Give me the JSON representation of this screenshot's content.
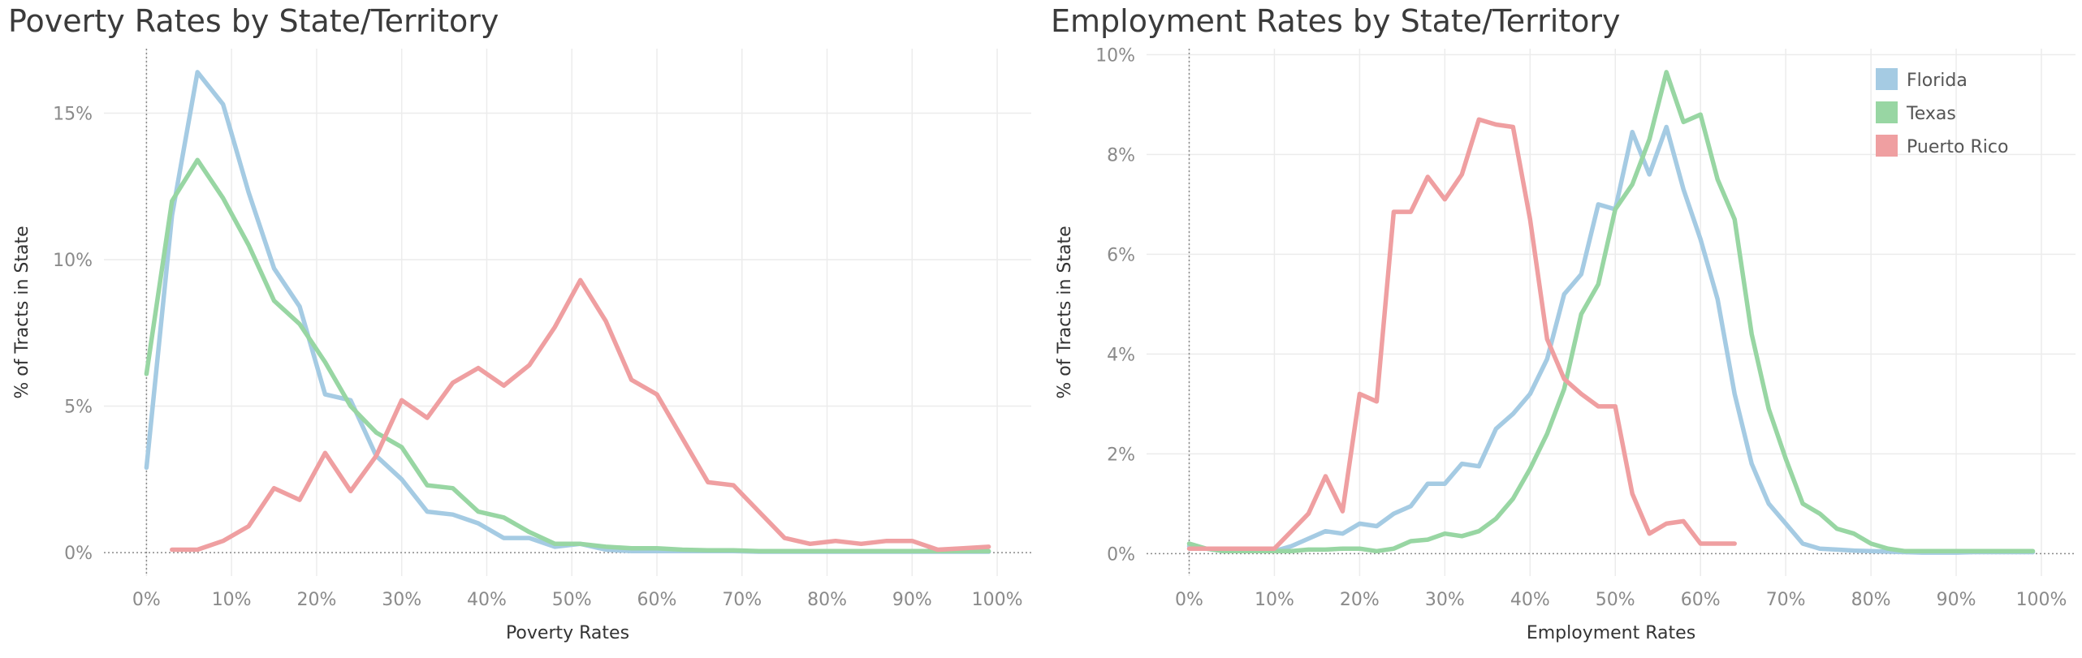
{
  "colors": {
    "florida": "#a5cbe3",
    "texas": "#98d6a3",
    "puerto_rico": "#ef9fa1",
    "grid": "#ececec",
    "zero_line": "#8a8a8a"
  },
  "chart_data": [
    {
      "type": "line",
      "title": "Poverty Rates by State/Territory",
      "xlabel": "Poverty Rates",
      "ylabel": "% of Tracts in State",
      "xlim": [
        -5,
        104
      ],
      "ylim": [
        -0.8,
        17.2
      ],
      "x_ticks": [
        0,
        10,
        20,
        30,
        40,
        50,
        60,
        70,
        80,
        90,
        100
      ],
      "x_tick_labels": [
        "0%",
        "10%",
        "20%",
        "30%",
        "40%",
        "50%",
        "60%",
        "70%",
        "80%",
        "90%",
        "100%"
      ],
      "y_ticks": [
        0,
        5,
        10,
        15
      ],
      "y_tick_labels": [
        "0%",
        "5%",
        "10%",
        "15%"
      ],
      "grid": true,
      "series": [
        {
          "name": "Florida",
          "color_key": "florida",
          "x": [
            0,
            3,
            6,
            9,
            12,
            15,
            18,
            21,
            24,
            27,
            30,
            33,
            36,
            39,
            42,
            45,
            48,
            51,
            54,
            57,
            60,
            63,
            66,
            69,
            72,
            75,
            78,
            81,
            84,
            87,
            90,
            93,
            96,
            99
          ],
          "y": [
            2.9,
            11.5,
            16.4,
            15.3,
            12.3,
            9.7,
            8.4,
            5.4,
            5.2,
            3.3,
            2.5,
            1.4,
            1.3,
            1.0,
            0.5,
            0.5,
            0.2,
            0.3,
            0.1,
            0.05,
            0.05,
            0.05,
            0.05,
            0.05,
            0.03,
            0.03,
            0.03,
            0.03,
            0.03,
            0.03,
            0.03,
            0.03,
            0.03,
            0.03
          ]
        },
        {
          "name": "Texas",
          "color_key": "texas",
          "x": [
            0,
            3,
            6,
            9,
            12,
            15,
            18,
            21,
            24,
            27,
            30,
            33,
            36,
            39,
            42,
            45,
            48,
            51,
            54,
            57,
            60,
            63,
            66,
            69,
            72,
            75,
            78,
            81,
            84,
            87,
            90,
            93,
            96,
            99
          ],
          "y": [
            6.1,
            12.0,
            13.4,
            12.1,
            10.5,
            8.6,
            7.8,
            6.5,
            5.0,
            4.1,
            3.6,
            2.3,
            2.2,
            1.4,
            1.2,
            0.7,
            0.3,
            0.3,
            0.2,
            0.15,
            0.15,
            0.1,
            0.08,
            0.08,
            0.05,
            0.05,
            0.05,
            0.05,
            0.05,
            0.05,
            0.05,
            0.05,
            0.05,
            0.05
          ]
        },
        {
          "name": "Puerto Rico",
          "color_key": "puerto_rico",
          "x": [
            3,
            6,
            9,
            12,
            15,
            18,
            21,
            24,
            27,
            30,
            33,
            36,
            39,
            42,
            45,
            48,
            51,
            54,
            57,
            60,
            63,
            66,
            69,
            72,
            75,
            78,
            81,
            84,
            87,
            90,
            93,
            96,
            99
          ],
          "y": [
            0.1,
            0.1,
            0.4,
            0.9,
            2.2,
            1.8,
            3.4,
            2.1,
            3.3,
            5.2,
            4.6,
            5.8,
            6.3,
            5.7,
            6.4,
            7.7,
            9.3,
            7.9,
            5.9,
            5.4,
            3.9,
            2.4,
            2.3,
            1.4,
            0.5,
            0.3,
            0.4,
            0.3,
            0.4,
            0.4,
            0.1,
            0.15,
            0.2
          ]
        }
      ]
    },
    {
      "type": "line",
      "title": "Employment Rates by State/Territory",
      "xlabel": "Employment Rates",
      "ylabel": "% of Tracts in State",
      "xlim": [
        -5,
        104
      ],
      "ylim": [
        -0.45,
        10.12
      ],
      "x_ticks": [
        0,
        10,
        20,
        30,
        40,
        50,
        60,
        70,
        80,
        90,
        100
      ],
      "x_tick_labels": [
        "0%",
        "10%",
        "20%",
        "30%",
        "40%",
        "50%",
        "60%",
        "70%",
        "80%",
        "90%",
        "100%"
      ],
      "y_ticks": [
        0,
        2,
        4,
        6,
        8,
        10
      ],
      "y_tick_labels": [
        "0%",
        "2%",
        "4%",
        "6%",
        "8%",
        "10%"
      ],
      "grid": true,
      "legend": {
        "placement": "top-right",
        "entries": [
          {
            "label": "Florida",
            "color_key": "florida"
          },
          {
            "label": "Texas",
            "color_key": "texas"
          },
          {
            "label": "Puerto Rico",
            "color_key": "puerto_rico"
          }
        ]
      },
      "series": [
        {
          "name": "Florida",
          "color_key": "florida",
          "x": [
            0,
            2,
            4,
            6,
            8,
            10,
            12,
            14,
            16,
            18,
            20,
            22,
            24,
            26,
            28,
            30,
            32,
            34,
            36,
            38,
            40,
            42,
            44,
            46,
            48,
            50,
            52,
            54,
            56,
            58,
            60,
            62,
            64,
            66,
            68,
            70,
            72,
            74,
            76,
            78,
            80,
            82,
            84,
            86,
            88,
            90,
            92,
            94,
            96,
            98,
            99
          ],
          "y": [
            0.15,
            0.1,
            0.05,
            0.05,
            0.05,
            0.05,
            0.15,
            0.3,
            0.45,
            0.4,
            0.6,
            0.55,
            0.8,
            0.95,
            1.4,
            1.4,
            1.8,
            1.75,
            2.5,
            2.8,
            3.2,
            3.9,
            5.2,
            5.6,
            7.0,
            6.9,
            8.45,
            7.6,
            8.55,
            7.3,
            6.3,
            5.1,
            3.2,
            1.8,
            1.0,
            0.6,
            0.2,
            0.1,
            0.08,
            0.06,
            0.05,
            0.04,
            0.03,
            0.02,
            0.02,
            0.02,
            0.03,
            0.03,
            0.03,
            0.03,
            0.03
          ]
        },
        {
          "name": "Texas",
          "color_key": "texas",
          "x": [
            0,
            2,
            4,
            6,
            8,
            10,
            12,
            14,
            16,
            18,
            20,
            22,
            24,
            26,
            28,
            30,
            32,
            34,
            36,
            38,
            40,
            42,
            44,
            46,
            48,
            50,
            52,
            54,
            56,
            58,
            60,
            62,
            64,
            66,
            68,
            70,
            72,
            74,
            76,
            78,
            80,
            82,
            84,
            86,
            88,
            90,
            92,
            94,
            96,
            98,
            99
          ],
          "y": [
            0.2,
            0.1,
            0.05,
            0.05,
            0.05,
            0.05,
            0.05,
            0.08,
            0.08,
            0.1,
            0.1,
            0.05,
            0.1,
            0.25,
            0.28,
            0.4,
            0.35,
            0.45,
            0.7,
            1.1,
            1.7,
            2.4,
            3.3,
            4.8,
            5.4,
            6.9,
            7.4,
            8.3,
            9.65,
            8.65,
            8.8,
            7.5,
            6.7,
            4.4,
            2.9,
            1.9,
            1.0,
            0.8,
            0.5,
            0.4,
            0.2,
            0.1,
            0.05,
            0.05,
            0.05,
            0.05,
            0.05,
            0.05,
            0.05,
            0.05,
            0.05
          ]
        },
        {
          "name": "Puerto Rico",
          "color_key": "puerto_rico",
          "x": [
            0,
            2,
            4,
            6,
            8,
            10,
            12,
            14,
            16,
            18,
            20,
            22,
            24,
            26,
            28,
            30,
            32,
            34,
            36,
            38,
            40,
            42,
            44,
            46,
            48,
            50,
            52,
            54,
            56,
            58,
            60,
            62,
            64
          ],
          "y": [
            0.1,
            0.1,
            0.1,
            0.1,
            0.1,
            0.1,
            0.45,
            0.8,
            1.55,
            0.85,
            3.2,
            3.05,
            6.85,
            6.85,
            7.55,
            7.1,
            7.6,
            8.7,
            8.6,
            8.55,
            6.7,
            4.3,
            3.5,
            3.2,
            2.95,
            2.95,
            1.2,
            0.4,
            0.6,
            0.65,
            0.2,
            0.2,
            0.2
          ]
        }
      ]
    }
  ]
}
